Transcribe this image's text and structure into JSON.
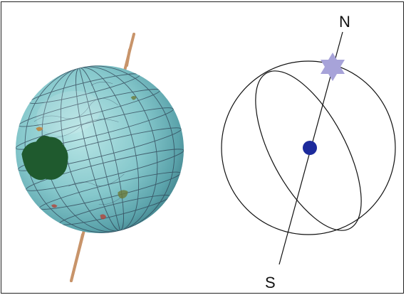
{
  "labels": {
    "north": "N",
    "south": "S"
  },
  "colors": {
    "ocean": "#8ecfd2",
    "land_green": "#1f5a2e",
    "grid_lines": "#2c3e50",
    "axis_rod": "#c8946a",
    "center_dot": "#1c2a9c",
    "star": "#a7a3d9",
    "stroke": "#111111"
  },
  "icons": {
    "globe": "globe-photo",
    "star": "six-point-star-icon",
    "center": "center-dot-icon"
  }
}
